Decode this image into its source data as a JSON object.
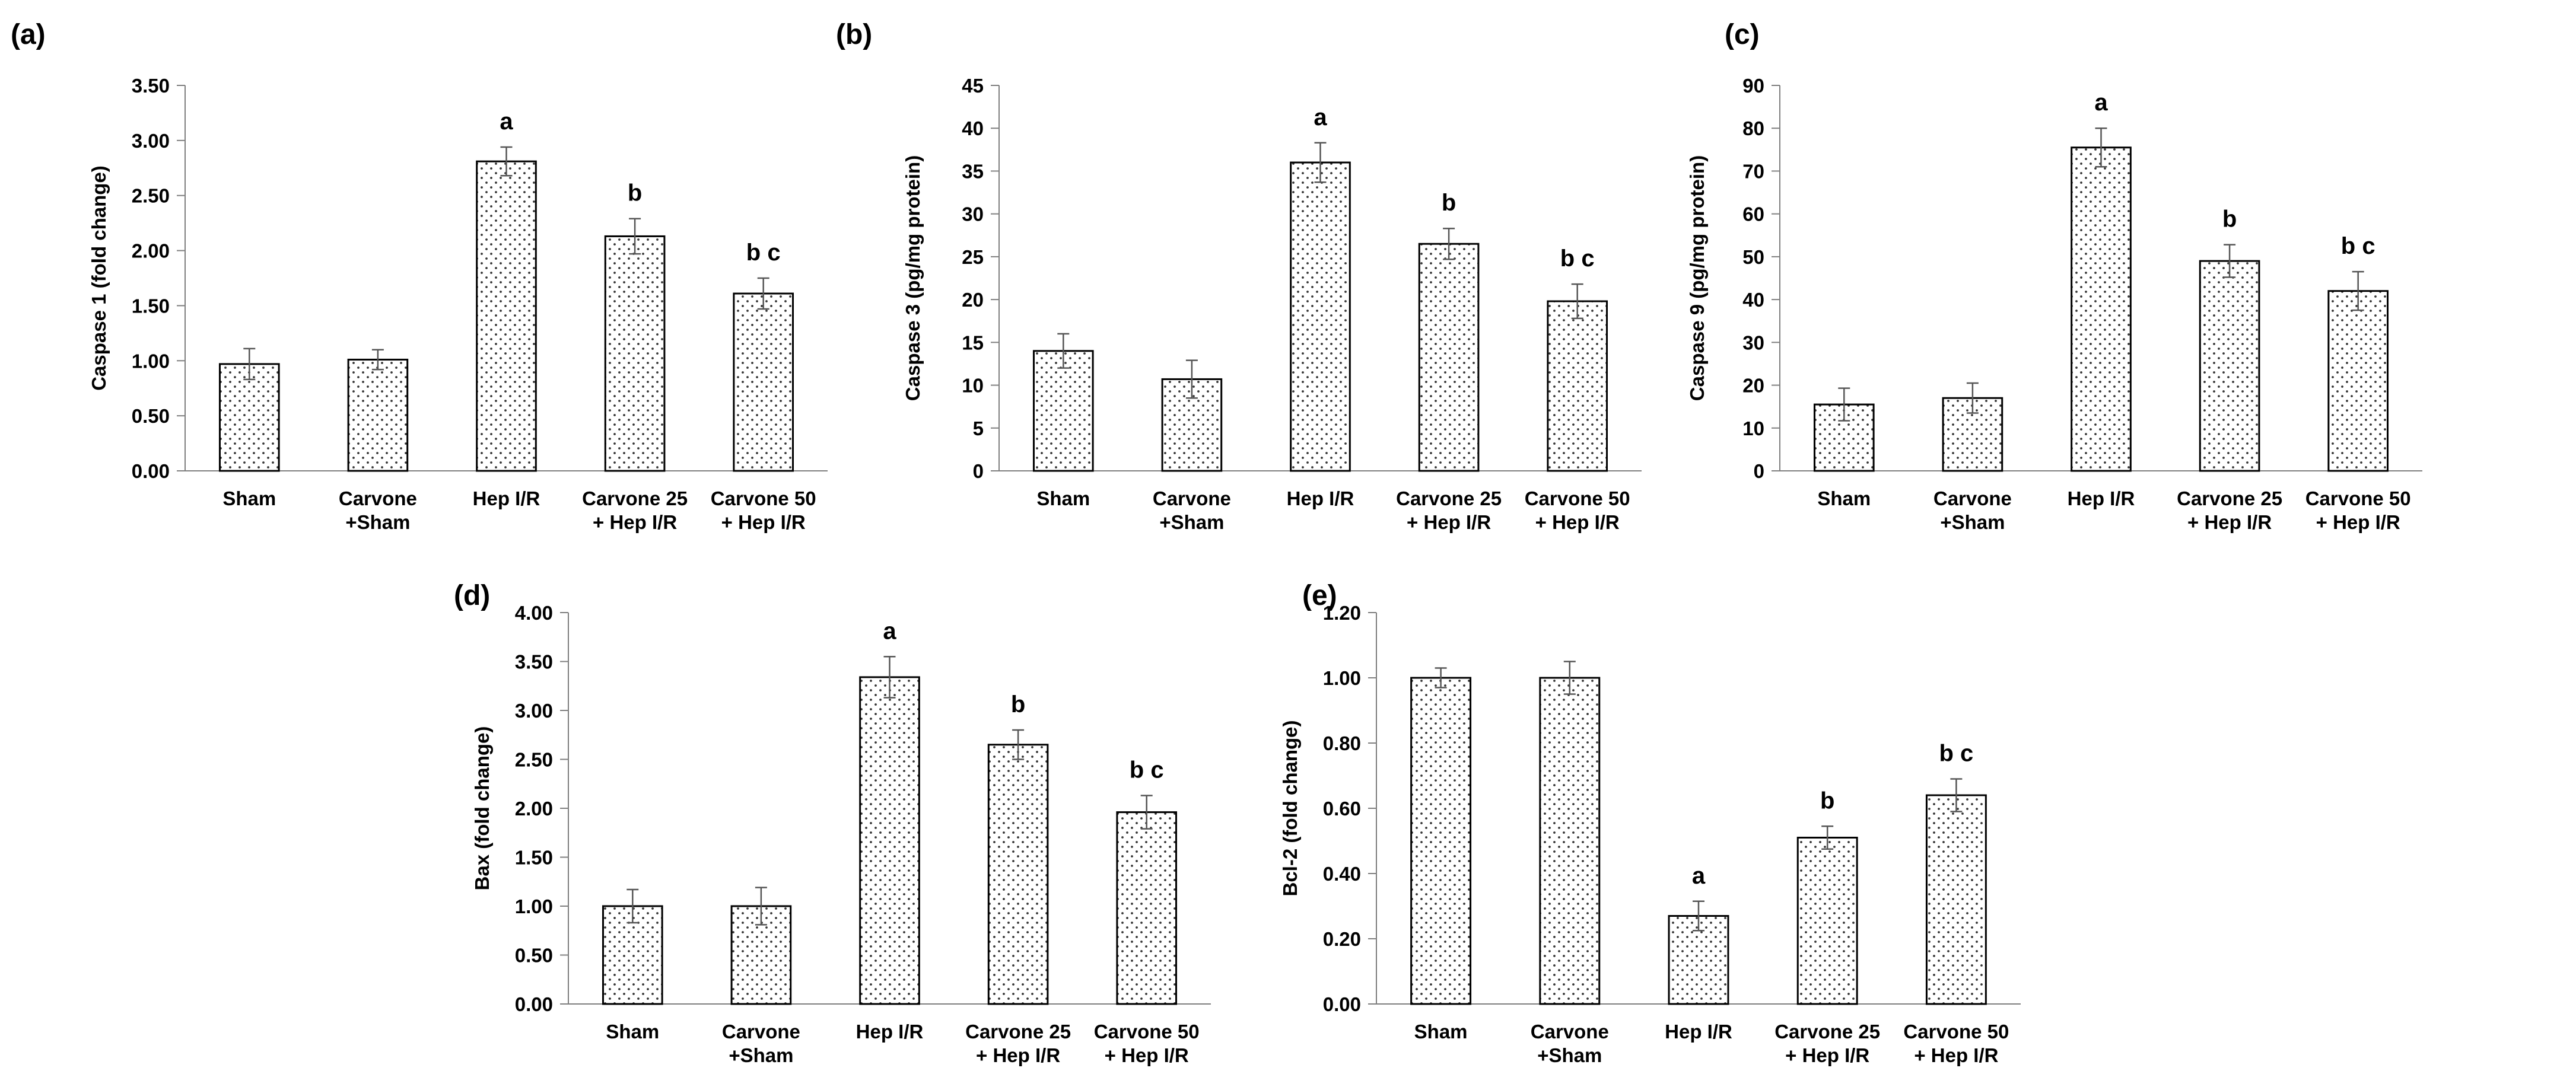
{
  "chart_data": [
    {
      "type": "bar",
      "panel": "(a)",
      "title": "",
      "xlabel": "",
      "ylabel": "Caspase 1 (fold change)",
      "ylim": [
        0,
        3.5
      ],
      "tick_step": 0.5,
      "tick_decimals": 2,
      "categories": [
        [
          "Sham"
        ],
        [
          "Carvone",
          "+Sham"
        ],
        [
          "Hep I/R"
        ],
        [
          "Carvone 25",
          "+ Hep I/R"
        ],
        [
          "Carvone 50",
          "+ Hep I/R"
        ]
      ],
      "values": [
        0.97,
        1.01,
        2.81,
        2.13,
        1.61
      ],
      "errors": [
        0.14,
        0.09,
        0.13,
        0.16,
        0.14
      ],
      "labels": [
        "",
        "",
        "a",
        "b",
        "b c"
      ]
    },
    {
      "type": "bar",
      "panel": "(b)",
      "title": "",
      "xlabel": "",
      "ylabel": "Caspase 3 (pg/mg protein)",
      "ylim": [
        0,
        45
      ],
      "tick_step": 5,
      "tick_decimals": 0,
      "categories": [
        [
          "Sham"
        ],
        [
          "Carvone",
          "+Sham"
        ],
        [
          "Hep I/R"
        ],
        [
          "Carvone 25",
          "+ Hep I/R"
        ],
        [
          "Carvone 50",
          "+ Hep I/R"
        ]
      ],
      "values": [
        14.0,
        10.7,
        36.0,
        26.5,
        19.8
      ],
      "errors": [
        2.0,
        2.2,
        2.3,
        1.8,
        2.0
      ],
      "labels": [
        "",
        "",
        "a",
        "b",
        "b c"
      ]
    },
    {
      "type": "bar",
      "panel": "(c)",
      "title": "",
      "xlabel": "",
      "ylabel": "Caspase 9 (pg/mg protein)",
      "ylim": [
        0,
        90
      ],
      "tick_step": 10,
      "tick_decimals": 0,
      "categories": [
        [
          "Sham"
        ],
        [
          "Carvone",
          "+Sham"
        ],
        [
          "Hep I/R"
        ],
        [
          "Carvone 25",
          "+ Hep I/R"
        ],
        [
          "Carvone 50",
          "+ Hep I/R"
        ]
      ],
      "values": [
        15.5,
        17.0,
        75.5,
        49.0,
        42.0
      ],
      "errors": [
        3.8,
        3.5,
        4.5,
        3.8,
        4.5
      ],
      "labels": [
        "",
        "",
        "a",
        "b",
        "b c"
      ]
    },
    {
      "type": "bar",
      "panel": "(d)",
      "title": "",
      "xlabel": "",
      "ylabel": "Bax (fold change)",
      "ylim": [
        0,
        4
      ],
      "tick_step": 0.5,
      "tick_decimals": 2,
      "categories": [
        [
          "Sham"
        ],
        [
          "Carvone",
          "+Sham"
        ],
        [
          "Hep I/R"
        ],
        [
          "Carvone 25",
          "+ Hep I/R"
        ],
        [
          "Carvone 50",
          "+ Hep I/R"
        ]
      ],
      "values": [
        1.0,
        1.0,
        3.34,
        2.65,
        1.96
      ],
      "errors": [
        0.17,
        0.19,
        0.21,
        0.15,
        0.17
      ],
      "labels": [
        "",
        "",
        "a",
        "b",
        "b c"
      ]
    },
    {
      "type": "bar",
      "panel": "(e)",
      "title": "",
      "xlabel": "",
      "ylabel": "Bcl-2 (fold change)",
      "ylim": [
        0,
        1.2
      ],
      "tick_step": 0.2,
      "tick_decimals": 2,
      "categories": [
        [
          "Sham"
        ],
        [
          "Carvone",
          "+Sham"
        ],
        [
          "Hep I/R"
        ],
        [
          "Carvone 25",
          "+ Hep I/R"
        ],
        [
          "Carvone 50",
          "+ Hep I/R"
        ]
      ],
      "values": [
        1.0,
        1.0,
        0.27,
        0.51,
        0.64
      ],
      "errors": [
        0.03,
        0.05,
        0.045,
        0.035,
        0.05
      ],
      "labels": [
        "",
        "",
        "a",
        "b",
        "b c"
      ]
    }
  ]
}
